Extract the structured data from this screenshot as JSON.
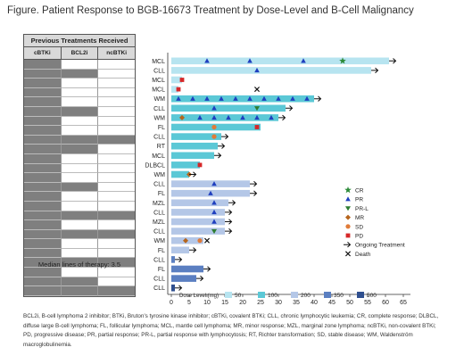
{
  "figure_title": "Figure. Patient Response to BGB-16673 Treatment by Dose-Level and B-Cell Malignancy",
  "table": {
    "title": "Previous Treatments Received",
    "columns": [
      "cBTKi",
      "BCL2i",
      "ncBTKi"
    ],
    "median_text": "Median lines of therapy: 3.5"
  },
  "footnote": "BCL2i, B-cell lymphoma 2 inhibitor; BTKi, Bruton's tyrosine kinase inhibitor; cBTKi, covalent BTKi; CLL, chronic lymphocytic leukemia; CR, complete response; DLBCL, diffuse large B-cell lymphoma; FL, follicular lymphoma; MCL, mantle cell lymphoma; MR, minor response; MZL, marginal zone lymphoma; ncBTKi, non-covalent BTKi; PD, progressive disease; PR, partial response; PR-L, partial response with lymphocytosis; RT, Richter transformation; SD, stable disease; WM, Waldenström macroglobulinemia.",
  "colors": {
    "dose_50": "#b7e4f0",
    "dose_100": "#5bc8d6",
    "dose_200": "#b4c7e7",
    "dose_350": "#5b7fc1",
    "dose_500": "#2f4f8f",
    "CR": "#2e8b3a",
    "PR": "#1f3fbf",
    "PR-L": "#2e7d32",
    "MR": "#b5651d",
    "SD": "#e07b39",
    "PD": "#d62728"
  },
  "chart_data": {
    "type": "bar",
    "orientation": "horizontal",
    "xlabel": "Treatment Duration (Weeks)",
    "xlim": [
      0,
      67
    ],
    "xticks": [
      0,
      5,
      10,
      15,
      20,
      25,
      30,
      35,
      40,
      45,
      50,
      55,
      60,
      65
    ],
    "legend_title": "Dose Level (mg)",
    "dose_levels": [
      "50",
      "100",
      "200",
      "350",
      "500"
    ],
    "response_legend": [
      {
        "key": "CR",
        "label": "CR",
        "shape": "star"
      },
      {
        "key": "PR",
        "label": "PR",
        "shape": "triangle-up"
      },
      {
        "key": "PR-L",
        "label": "PR-L",
        "shape": "triangle-down"
      },
      {
        "key": "MR",
        "label": "MR",
        "shape": "diamond"
      },
      {
        "key": "SD",
        "label": "SD",
        "shape": "circle"
      },
      {
        "key": "PD",
        "label": "PD",
        "shape": "square"
      },
      {
        "key": "ongoing",
        "label": "Ongoing Treatment",
        "shape": "arrow"
      },
      {
        "key": "death",
        "label": "Death",
        "shape": "x"
      }
    ],
    "patients": [
      {
        "label": "MCL",
        "dose": "50",
        "duration": 61,
        "ongoing": true,
        "prior": [
          1,
          0,
          0
        ],
        "events": [
          {
            "t": 10,
            "r": "PR"
          },
          {
            "t": 22,
            "r": "PR"
          },
          {
            "t": 37,
            "r": "PR"
          },
          {
            "t": 48,
            "r": "CR"
          }
        ]
      },
      {
        "label": "CLL",
        "dose": "50",
        "duration": 56,
        "ongoing": true,
        "prior": [
          1,
          1,
          0
        ],
        "events": [
          {
            "t": 24,
            "r": "PR"
          }
        ]
      },
      {
        "label": "MCL",
        "dose": "50",
        "duration": 3,
        "ongoing": false,
        "prior": [
          1,
          0,
          0
        ],
        "events": [
          {
            "t": 3,
            "r": "PD"
          }
        ]
      },
      {
        "label": "MCL",
        "dose": "50",
        "duration": 2,
        "ongoing": false,
        "prior": [
          1,
          0,
          0
        ],
        "events": [
          {
            "t": 2,
            "r": "PD"
          },
          {
            "t": 24,
            "r": "death"
          }
        ]
      },
      {
        "label": "WM",
        "dose": "100",
        "duration": 40,
        "ongoing": true,
        "prior": [
          1,
          0,
          0
        ],
        "events": [
          {
            "t": 2,
            "r": "PR"
          },
          {
            "t": 6,
            "r": "PR"
          },
          {
            "t": 10,
            "r": "PR"
          },
          {
            "t": 14,
            "r": "PR"
          },
          {
            "t": 18,
            "r": "PR"
          },
          {
            "t": 22,
            "r": "PR"
          },
          {
            "t": 26,
            "r": "PR"
          },
          {
            "t": 30,
            "r": "PR"
          },
          {
            "t": 34,
            "r": "PR"
          },
          {
            "t": 38,
            "r": "PR"
          }
        ]
      },
      {
        "label": "CLL",
        "dose": "100",
        "duration": 32,
        "ongoing": true,
        "prior": [
          1,
          1,
          0
        ],
        "events": [
          {
            "t": 12,
            "r": "PR"
          },
          {
            "t": 24,
            "r": "PR-L"
          }
        ]
      },
      {
        "label": "WM",
        "dose": "100",
        "duration": 30,
        "ongoing": true,
        "prior": [
          1,
          0,
          0
        ],
        "events": [
          {
            "t": 3,
            "r": "MR"
          },
          {
            "t": 8,
            "r": "PR"
          },
          {
            "t": 12,
            "r": "PR"
          },
          {
            "t": 16,
            "r": "PR"
          },
          {
            "t": 20,
            "r": "PR"
          },
          {
            "t": 24,
            "r": "PR"
          },
          {
            "t": 28,
            "r": "PR"
          }
        ]
      },
      {
        "label": "FL",
        "dose": "100",
        "duration": 25,
        "ongoing": false,
        "prior": [
          1,
          0,
          0
        ],
        "events": [
          {
            "t": 12,
            "r": "SD"
          },
          {
            "t": 24,
            "r": "PD"
          }
        ]
      },
      {
        "label": "CLL",
        "dose": "100",
        "duration": 14,
        "ongoing": true,
        "prior": [
          1,
          1,
          1
        ],
        "events": [
          {
            "t": 12,
            "r": "SD"
          }
        ]
      },
      {
        "label": "RT",
        "dose": "100",
        "duration": 13,
        "ongoing": true,
        "prior": [
          1,
          1,
          0
        ],
        "events": []
      },
      {
        "label": "MCL",
        "dose": "100",
        "duration": 12,
        "ongoing": true,
        "prior": [
          1,
          0,
          0
        ],
        "events": []
      },
      {
        "label": "DLBCL",
        "dose": "100",
        "duration": 8,
        "ongoing": false,
        "prior": [
          1,
          0,
          0
        ],
        "events": [
          {
            "t": 8,
            "r": "PD"
          }
        ]
      },
      {
        "label": "WM",
        "dose": "100",
        "duration": 5,
        "ongoing": true,
        "prior": [
          1,
          0,
          0
        ],
        "events": [
          {
            "t": 5,
            "r": "MR"
          }
        ]
      },
      {
        "label": "CLL",
        "dose": "200",
        "duration": 22,
        "ongoing": true,
        "prior": [
          1,
          1,
          0
        ],
        "events": [
          {
            "t": 12,
            "r": "PR"
          }
        ]
      },
      {
        "label": "FL",
        "dose": "200",
        "duration": 22,
        "ongoing": true,
        "prior": [
          1,
          0,
          0
        ],
        "events": [
          {
            "t": 11,
            "r": "PR"
          }
        ]
      },
      {
        "label": "MZL",
        "dose": "200",
        "duration": 16,
        "ongoing": true,
        "prior": [
          1,
          0,
          0
        ],
        "events": [
          {
            "t": 12,
            "r": "PR"
          }
        ]
      },
      {
        "label": "CLL",
        "dose": "200",
        "duration": 15,
        "ongoing": true,
        "prior": [
          1,
          1,
          1
        ],
        "events": [
          {
            "t": 12,
            "r": "PR"
          }
        ]
      },
      {
        "label": "MZL",
        "dose": "200",
        "duration": 15,
        "ongoing": true,
        "prior": [
          1,
          0,
          0
        ],
        "events": [
          {
            "t": 12,
            "r": "PR"
          }
        ]
      },
      {
        "label": "CLL",
        "dose": "200",
        "duration": 15,
        "ongoing": true,
        "prior": [
          1,
          1,
          1
        ],
        "events": [
          {
            "t": 12,
            "r": "PR-L"
          }
        ]
      },
      {
        "label": "WM",
        "dose": "200",
        "duration": 9,
        "ongoing": false,
        "prior": [
          1,
          0,
          0
        ],
        "events": [
          {
            "t": 4,
            "r": "MR"
          },
          {
            "t": 8,
            "r": "SD"
          },
          {
            "t": 10,
            "r": "death"
          }
        ]
      },
      {
        "label": "FL",
        "dose": "200",
        "duration": 5,
        "ongoing": true,
        "prior": [
          1,
          0,
          0
        ],
        "events": []
      },
      {
        "label": "CLL",
        "dose": "350",
        "duration": 1,
        "ongoing": true,
        "prior": [
          1,
          1,
          1
        ],
        "events": []
      },
      {
        "label": "FL",
        "dose": "350",
        "duration": 9,
        "ongoing": true,
        "prior": [
          1,
          0,
          0
        ],
        "events": []
      },
      {
        "label": "CLL",
        "dose": "350",
        "duration": 7,
        "ongoing": true,
        "prior": [
          1,
          1,
          0
        ],
        "events": []
      },
      {
        "label": "CLL",
        "dose": "500",
        "duration": 1,
        "ongoing": true,
        "prior": [
          1,
          1,
          1
        ],
        "events": []
      }
    ]
  }
}
